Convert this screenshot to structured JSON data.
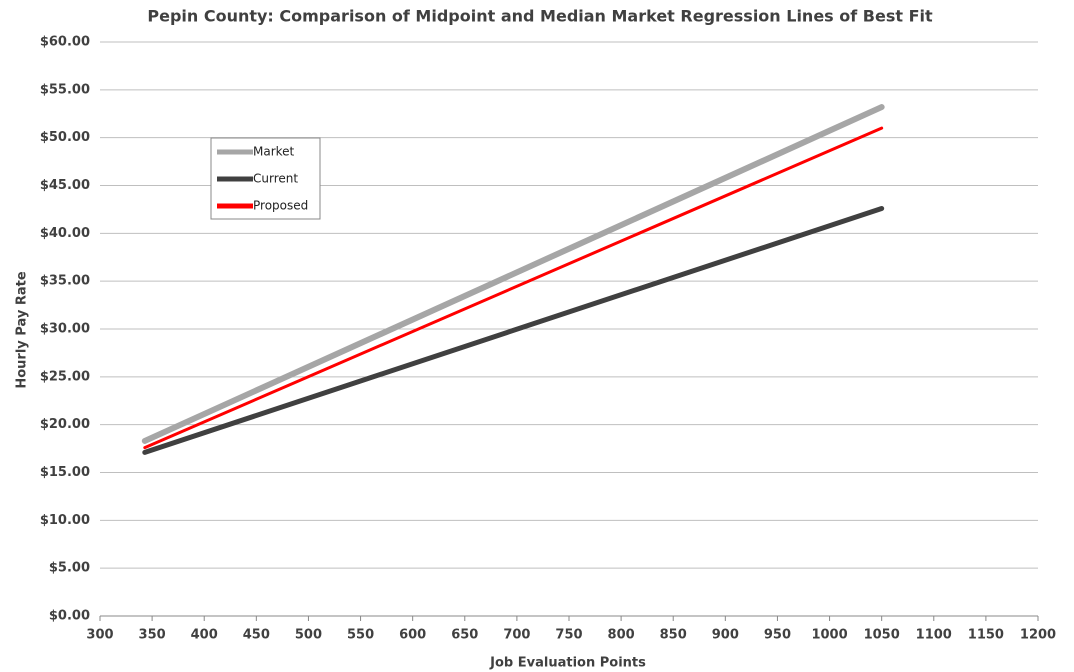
{
  "chart_data": {
    "type": "line",
    "title": "Pepin County: Comparison of Midpoint and Median Market Regression Lines of Best Fit",
    "xlabel": "Job Evaluation Points",
    "ylabel": "Hourly Pay Rate",
    "x": [
      343,
      1050
    ],
    "series": [
      {
        "name": "Market",
        "color": "#a6a6a6",
        "values": [
          18.3,
          53.2
        ]
      },
      {
        "name": "Current",
        "color": "#404040",
        "values": [
          17.1,
          42.6
        ]
      },
      {
        "name": "Proposed",
        "color": "#ff0000",
        "values": [
          17.6,
          51.0
        ]
      }
    ],
    "xlim": [
      300,
      1200
    ],
    "xticks": [
      300,
      350,
      400,
      450,
      500,
      550,
      600,
      650,
      700,
      750,
      800,
      850,
      900,
      950,
      1000,
      1050,
      1100,
      1150,
      1200
    ],
    "ylim": [
      0,
      60
    ],
    "yticks": [
      {
        "value": 0,
        "label": "$0.00"
      },
      {
        "value": 5,
        "label": "$5.00"
      },
      {
        "value": 10,
        "label": "$10.00"
      },
      {
        "value": 15,
        "label": "$15.00"
      },
      {
        "value": 20,
        "label": "$20.00"
      },
      {
        "value": 25,
        "label": "$25.00"
      },
      {
        "value": 30,
        "label": "$30.00"
      },
      {
        "value": 35,
        "label": "$35.00"
      },
      {
        "value": 40,
        "label": "$40.00"
      },
      {
        "value": 45,
        "label": "$45.00"
      },
      {
        "value": 50,
        "label": "$50.00"
      },
      {
        "value": 55,
        "label": "$55.00"
      },
      {
        "value": 60,
        "label": "$60.00"
      }
    ],
    "grid": true,
    "legend": "upper left"
  }
}
